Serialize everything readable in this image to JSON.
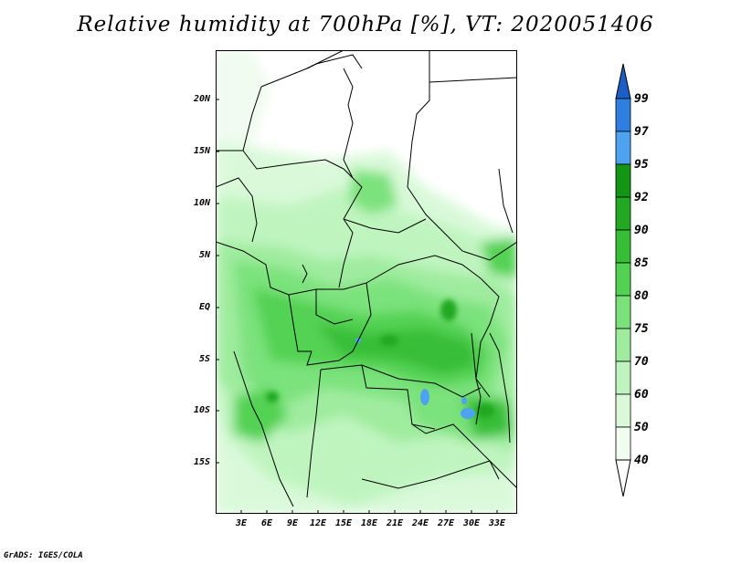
{
  "title": "Relative humidity at 700hPa [%], VT: 2020051406",
  "credit": "GrADS: IGES/COLA",
  "axes": {
    "lat_ticks": [
      "20N",
      "15N",
      "10N",
      "5N",
      "EQ",
      "5S",
      "10S",
      "15S"
    ],
    "lon_ticks": [
      "3E",
      "6E",
      "9E",
      "12E",
      "15E",
      "18E",
      "21E",
      "24E",
      "27E",
      "30E",
      "33E"
    ]
  },
  "colorbar": {
    "levels": [
      "99",
      "97",
      "95",
      "92",
      "90",
      "85",
      "80",
      "75",
      "70",
      "60",
      "50",
      "40"
    ],
    "colors": {
      "gt99": "#1b5fc4",
      "97_99": "#2f7fe0",
      "95_97": "#4da3f0",
      "92_95": "#139613",
      "90_92": "#23a823",
      "85_90": "#37be37",
      "80_85": "#52d252",
      "75_80": "#7be27b",
      "70_75": "#9fec9f",
      "60_70": "#bff4bf",
      "50_60": "#d9f9d9",
      "40_50": "#effcef",
      "lt40": "#ffffff"
    }
  }
}
